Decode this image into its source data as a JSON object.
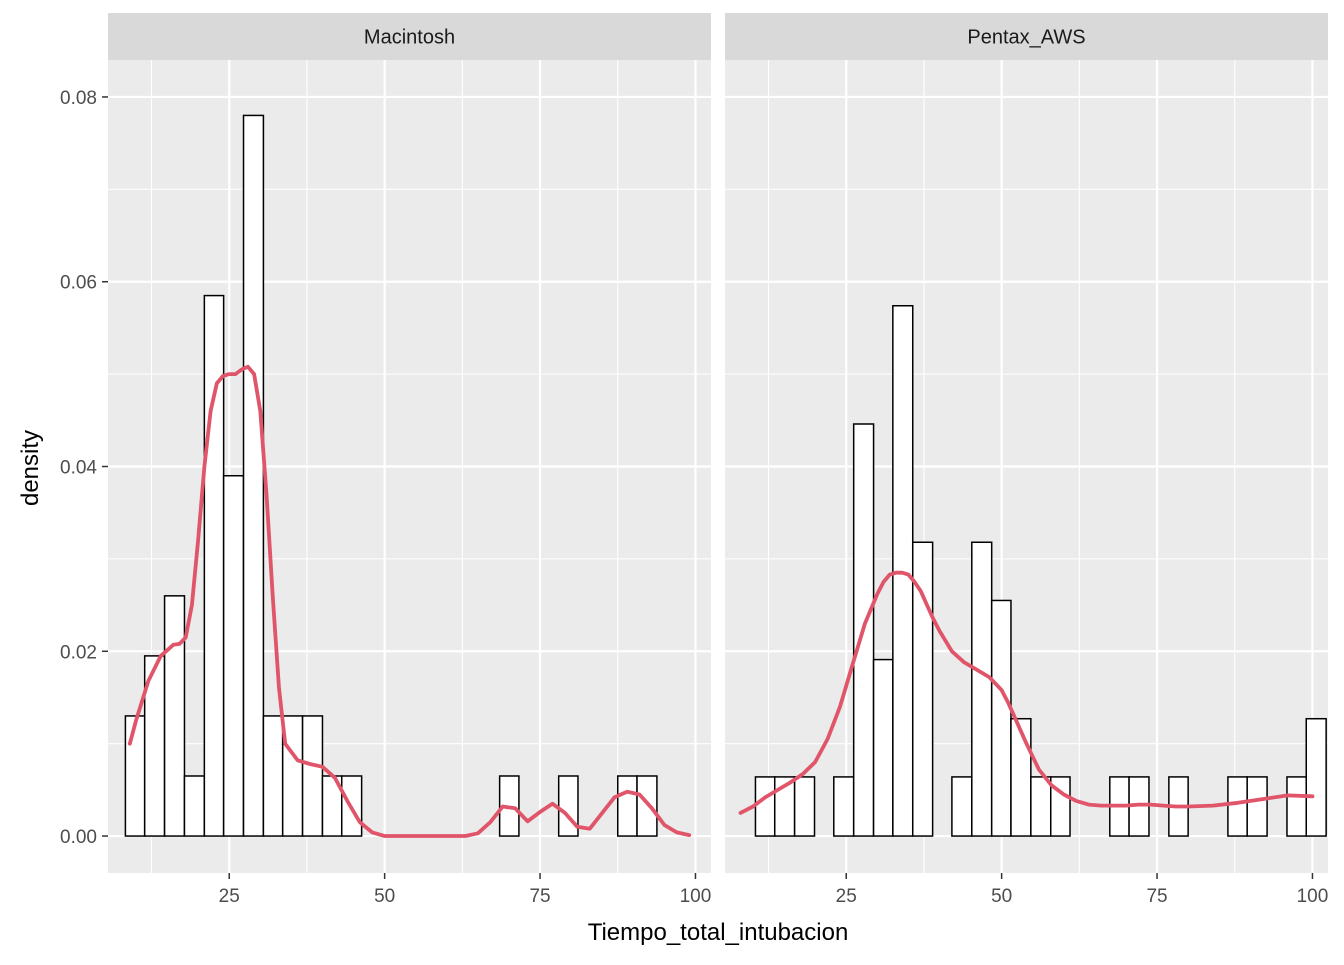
{
  "colors": {
    "panel_bg": "#EBEBEB",
    "strip_bg": "#D9D9D9",
    "grid": "#FFFFFF",
    "bar_fill": "#FFFFFF",
    "bar_stroke": "#000000",
    "density_line": "#E05569"
  },
  "chart_data": {
    "type": "bar",
    "xlabel": "Tiempo_total_intubacion",
    "ylabel": "density",
    "xlim": [
      5.5,
      102.5
    ],
    "ylim": [
      -0.004,
      0.084
    ],
    "x_ticks": [
      25,
      50,
      75,
      100
    ],
    "x_tick_labels": [
      "25",
      "50",
      "75",
      "100"
    ],
    "y_ticks": [
      0.0,
      0.02,
      0.04,
      0.06,
      0.08
    ],
    "y_tick_labels": [
      "0.00",
      "0.02",
      "0.04",
      "0.06",
      "0.08"
    ],
    "grid": true,
    "facets": [
      {
        "label": "Macintosh",
        "bins": [
          {
            "x0": 8.3,
            "x1": 11.4,
            "density": 0.013
          },
          {
            "x0": 11.4,
            "x1": 14.6,
            "density": 0.0195
          },
          {
            "x0": 14.6,
            "x1": 17.8,
            "density": 0.026
          },
          {
            "x0": 17.8,
            "x1": 21.0,
            "density": 0.0065
          },
          {
            "x0": 21.0,
            "x1": 24.1,
            "density": 0.0585
          },
          {
            "x0": 24.1,
            "x1": 27.3,
            "density": 0.039
          },
          {
            "x0": 27.3,
            "x1": 30.5,
            "density": 0.078
          },
          {
            "x0": 30.5,
            "x1": 33.6,
            "density": 0.013
          },
          {
            "x0": 33.6,
            "x1": 36.8,
            "density": 0.013
          },
          {
            "x0": 36.8,
            "x1": 40.0,
            "density": 0.013
          },
          {
            "x0": 40.0,
            "x1": 43.1,
            "density": 0.0065
          },
          {
            "x0": 43.1,
            "x1": 46.3,
            "density": 0.0065
          },
          {
            "x0": 46.3,
            "x1": 49.5,
            "density": 0
          },
          {
            "x0": 49.5,
            "x1": 52.6,
            "density": 0
          },
          {
            "x0": 52.6,
            "x1": 55.8,
            "density": 0
          },
          {
            "x0": 55.8,
            "x1": 59.0,
            "density": 0
          },
          {
            "x0": 59.0,
            "x1": 62.1,
            "density": 0
          },
          {
            "x0": 62.1,
            "x1": 65.3,
            "density": 0
          },
          {
            "x0": 65.3,
            "x1": 68.5,
            "density": 0
          },
          {
            "x0": 68.5,
            "x1": 71.6,
            "density": 0.0065
          },
          {
            "x0": 71.6,
            "x1": 74.8,
            "density": 0
          },
          {
            "x0": 74.8,
            "x1": 78.0,
            "density": 0
          },
          {
            "x0": 78.0,
            "x1": 81.1,
            "density": 0.0065
          },
          {
            "x0": 81.1,
            "x1": 84.3,
            "density": 0
          },
          {
            "x0": 84.3,
            "x1": 87.5,
            "density": 0
          },
          {
            "x0": 87.5,
            "x1": 90.6,
            "density": 0.0065
          },
          {
            "x0": 90.6,
            "x1": 93.8,
            "density": 0.0065
          },
          {
            "x0": 93.8,
            "x1": 97.0,
            "density": 0
          },
          {
            "x0": 97.0,
            "x1": 100.1,
            "density": 0
          },
          {
            "x0": 100.1,
            "x1": 101.6,
            "density": 0
          }
        ],
        "density_curve": {
          "name": "",
          "x": [
            9,
            10,
            12,
            14,
            16,
            17,
            18,
            19,
            20,
            21,
            22,
            23,
            24,
            25,
            26,
            27,
            28,
            29,
            30,
            31,
            32,
            33,
            34,
            36,
            38,
            40,
            42,
            44,
            46,
            48,
            50,
            55,
            60,
            63,
            65,
            67,
            69,
            71,
            73,
            75,
            77,
            79,
            81,
            83,
            85,
            87,
            89,
            91,
            93,
            95,
            97,
            99
          ],
          "y": [
            0.01,
            0.0125,
            0.0168,
            0.0195,
            0.0207,
            0.0208,
            0.0215,
            0.025,
            0.032,
            0.04,
            0.046,
            0.049,
            0.0498,
            0.05,
            0.05,
            0.0505,
            0.0508,
            0.05,
            0.046,
            0.037,
            0.026,
            0.016,
            0.01,
            0.0082,
            0.0078,
            0.0075,
            0.0063,
            0.0038,
            0.0015,
            0.0004,
            0.0,
            0.0,
            0.0,
            0.0,
            0.0003,
            0.0015,
            0.0032,
            0.003,
            0.0016,
            0.0026,
            0.0035,
            0.0025,
            0.001,
            0.0008,
            0.0025,
            0.0042,
            0.0048,
            0.0045,
            0.003,
            0.0012,
            0.0004,
            0.0001
          ]
        }
      },
      {
        "label": "Pentax_AWS",
        "bins": [
          {
            "x0": 7.2,
            "x1": 10.4,
            "density": 0
          },
          {
            "x0": 10.4,
            "x1": 13.5,
            "density": 0.0064
          },
          {
            "x0": 13.5,
            "x1": 16.7,
            "density": 0.0064
          },
          {
            "x0": 16.7,
            "x1": 19.9,
            "density": 0.0064
          },
          {
            "x0": 19.9,
            "x1": 23.0,
            "density": 0
          },
          {
            "x0": 23.0,
            "x1": 26.2,
            "density": 0.0064
          },
          {
            "x0": 26.2,
            "x1": 29.4,
            "density": 0.0446
          },
          {
            "x0": 29.4,
            "x1": 32.5,
            "density": 0.0191
          },
          {
            "x0": 32.5,
            "x1": 35.7,
            "density": 0.0574
          },
          {
            "x0": 35.7,
            "x1": 38.9,
            "density": 0.0318
          },
          {
            "x0": 38.9,
            "x1": 42.0,
            "density": 0
          },
          {
            "x0": 42.0,
            "x1": 45.2,
            "density": 0.0064
          },
          {
            "x0": 45.2,
            "x1": 48.4,
            "density": 0.0318
          },
          {
            "x0": 48.4,
            "x1": 51.5,
            "density": 0.0255
          },
          {
            "x0": 51.5,
            "x1": 54.7,
            "density": 0.0127
          },
          {
            "x0": 54.7,
            "x1": 57.9,
            "density": 0.0064
          },
          {
            "x0": 57.9,
            "x1": 61.0,
            "density": 0.0064
          },
          {
            "x0": 61.0,
            "x1": 64.2,
            "density": 0
          },
          {
            "x0": 64.2,
            "x1": 67.4,
            "density": 0
          },
          {
            "x0": 67.4,
            "x1": 70.5,
            "density": 0.0064
          },
          {
            "x0": 70.5,
            "x1": 73.7,
            "density": 0.0064
          },
          {
            "x0": 73.7,
            "x1": 76.9,
            "density": 0
          },
          {
            "x0": 76.9,
            "x1": 80.0,
            "density": 0.0064
          },
          {
            "x0": 80.0,
            "x1": 83.2,
            "density": 0
          },
          {
            "x0": 83.2,
            "x1": 86.4,
            "density": 0
          },
          {
            "x0": 86.4,
            "x1": 89.5,
            "density": 0.0064
          },
          {
            "x0": 89.5,
            "x1": 92.7,
            "density": 0.0064
          },
          {
            "x0": 92.7,
            "x1": 95.9,
            "density": 0
          },
          {
            "x0": 95.9,
            "x1": 99.0,
            "density": 0.0064
          },
          {
            "x0": 99.0,
            "x1": 102.2,
            "density": 0.0127
          }
        ],
        "density_curve": {
          "name": "",
          "x": [
            8,
            10,
            12,
            14,
            16,
            18,
            20,
            22,
            24,
            26,
            28,
            30,
            31,
            32,
            33,
            34,
            35,
            36,
            37,
            38,
            39,
            40,
            42,
            44,
            46,
            48,
            50,
            51,
            52,
            54,
            56,
            58,
            60,
            62,
            64,
            66,
            68,
            70,
            72,
            74,
            76,
            78,
            80,
            84,
            88,
            92,
            96,
            100
          ],
          "y": [
            0.0025,
            0.0032,
            0.0042,
            0.005,
            0.0058,
            0.0067,
            0.008,
            0.0105,
            0.014,
            0.0185,
            0.023,
            0.0262,
            0.0275,
            0.0283,
            0.0285,
            0.0285,
            0.0283,
            0.0275,
            0.0265,
            0.025,
            0.0235,
            0.0222,
            0.02,
            0.0188,
            0.018,
            0.0172,
            0.0158,
            0.0145,
            0.013,
            0.01,
            0.0072,
            0.0055,
            0.0045,
            0.0038,
            0.0034,
            0.0033,
            0.0033,
            0.0033,
            0.0034,
            0.0034,
            0.0033,
            0.0032,
            0.0032,
            0.0033,
            0.0036,
            0.004,
            0.0044,
            0.0043
          ]
        }
      }
    ]
  }
}
